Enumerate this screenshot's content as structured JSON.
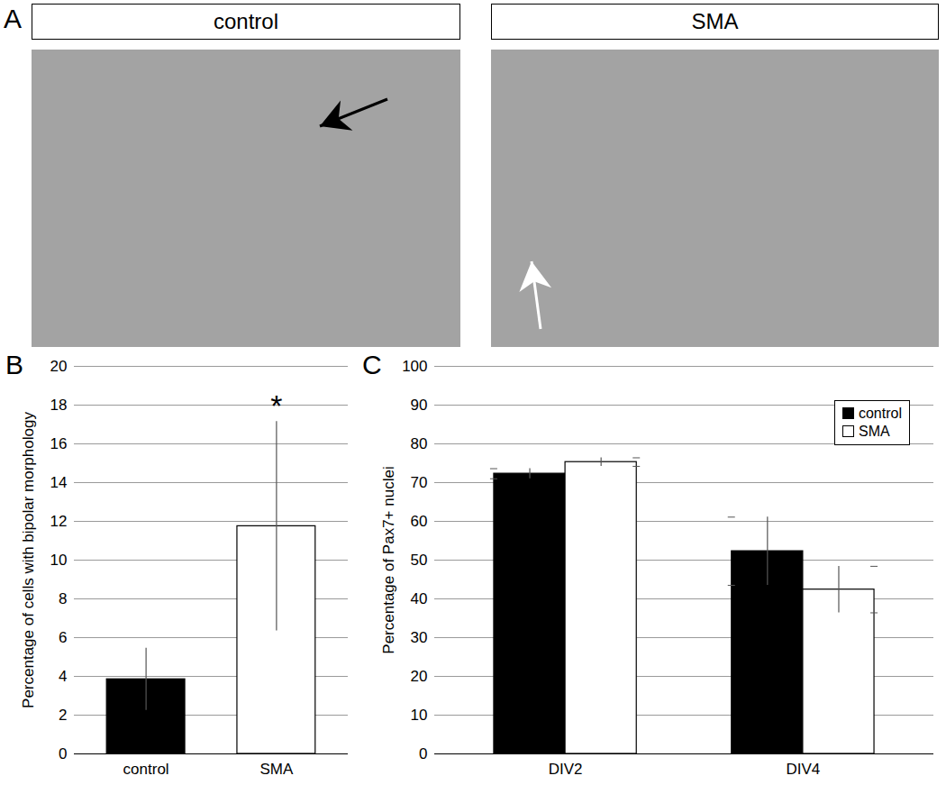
{
  "panel_a": {
    "label": "A",
    "images": [
      {
        "title": "control"
      },
      {
        "title": "SMA"
      }
    ]
  },
  "chart_data": [
    {
      "type": "bar",
      "title": "B",
      "ylabel": "Percentage of cells with bipolar morphology",
      "categories": [
        "control",
        "SMA"
      ],
      "values": [
        3.85,
        11.75
      ],
      "errors": [
        1.6,
        5.4
      ],
      "colors": [
        "#000000",
        "#ffffff"
      ],
      "ylim": [
        0,
        20
      ],
      "yticks": [
        0,
        2,
        4,
        6,
        8,
        10,
        12,
        14,
        16,
        18,
        20
      ],
      "grid": true,
      "annotations": [
        {
          "text": "*",
          "x": "SMA",
          "y": 18.2
        }
      ]
    },
    {
      "type": "bar",
      "title": "C",
      "ylabel": "Percentage of Pax7+ nuclei",
      "categories": [
        "DIV2",
        "DIV4"
      ],
      "series": [
        {
          "name": "control",
          "color": "#000000",
          "values": [
            72.3,
            52.3
          ],
          "errors": [
            1.3,
            8.8
          ]
        },
        {
          "name": "SMA",
          "color": "#ffffff",
          "values": [
            75.3,
            42.4
          ],
          "errors": [
            1.1,
            6.0
          ]
        }
      ],
      "ylim": [
        0,
        100
      ],
      "yticks": [
        0,
        10,
        20,
        30,
        40,
        50,
        60,
        70,
        80,
        90,
        100
      ],
      "grid": true,
      "legend": "top-right"
    }
  ]
}
